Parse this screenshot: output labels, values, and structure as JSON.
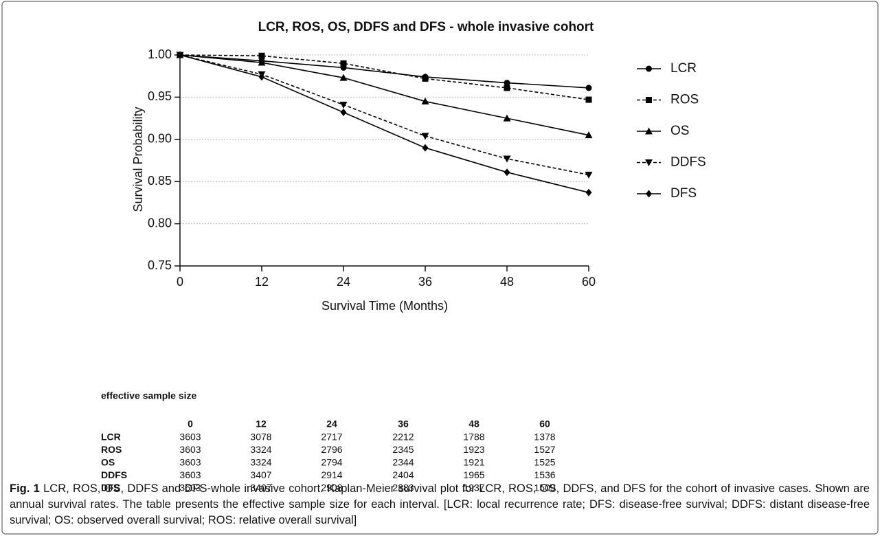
{
  "chart_data": {
    "type": "line",
    "title": "LCR, ROS, OS, DDFS and DFS - whole invasive cohort",
    "x_label": "Survival Time (Months)",
    "y_label": "Survival Probability",
    "x": [
      0,
      12,
      24,
      36,
      48,
      60
    ],
    "xlim": [
      0,
      60
    ],
    "xticks": [
      0,
      12,
      24,
      36,
      48,
      60
    ],
    "ylim": [
      0.75,
      1.0
    ],
    "yticks": [
      {
        "value": 0.75,
        "label": "0.75"
      },
      {
        "value": 0.8,
        "label": "0.80"
      },
      {
        "value": 0.85,
        "label": "0.85"
      },
      {
        "value": 0.9,
        "label": "0.90"
      },
      {
        "value": 0.95,
        "label": "0.95"
      },
      {
        "value": 1.0,
        "label": "1.00"
      }
    ],
    "grid": true,
    "legend": "right",
    "series": [
      {
        "name": "LCR",
        "color": "#000000",
        "marker": "circle",
        "dashed": false,
        "values": [
          1.0,
          0.993,
          0.985,
          0.974,
          0.967,
          0.961
        ]
      },
      {
        "name": "ROS",
        "color": "#000000",
        "marker": "square",
        "dashed": true,
        "values": [
          1.0,
          0.999,
          0.99,
          0.972,
          0.961,
          0.947
        ]
      },
      {
        "name": "OS",
        "color": "#000000",
        "marker": "triangle",
        "dashed": false,
        "values": [
          1.0,
          0.991,
          0.973,
          0.945,
          0.925,
          0.905
        ]
      },
      {
        "name": "DDFS",
        "color": "#000000",
        "marker": "triangle-down",
        "dashed": true,
        "values": [
          1.0,
          0.977,
          0.941,
          0.904,
          0.877,
          0.858
        ]
      },
      {
        "name": "DFS",
        "color": "#000000",
        "marker": "diamond",
        "dashed": false,
        "values": [
          1.0,
          0.974,
          0.932,
          0.89,
          0.861,
          0.837
        ]
      }
    ]
  },
  "table": {
    "title": "effective sample size",
    "columns": [
      "0",
      "12",
      "24",
      "36",
      "48",
      "60"
    ],
    "rows": [
      [
        "LCR",
        "3603",
        "3078",
        "2717",
        "2212",
        "1788",
        "1378"
      ],
      [
        "ROS",
        "3603",
        "3324",
        "2796",
        "2345",
        "1923",
        "1527"
      ],
      [
        "OS",
        "3603",
        "3324",
        "2794",
        "2344",
        "1921",
        "1525"
      ],
      [
        "DDFS",
        "3603",
        "3407",
        "2914",
        "2404",
        "1965",
        "1536"
      ],
      [
        "DFS",
        "3603",
        "3407",
        "2908",
        "2383",
        "1937",
        "1509"
      ]
    ]
  },
  "caption": {
    "label": "Fig. 1",
    "text": "LCR, ROS, OS, DDFS and DFS-whole invasive cohort. Kaplan-Meier survival plot for LCR, ROS, OS, DDFS, and DFS for the cohort of invasive cases. Shown are annual survival rates. The table presents the effective sample size for each interval. [LCR: local recurrence rate; DFS: disease-free survival; DDFS: distant disease-free survival; OS: observed overall survival; ROS: relative overall survival]"
  }
}
